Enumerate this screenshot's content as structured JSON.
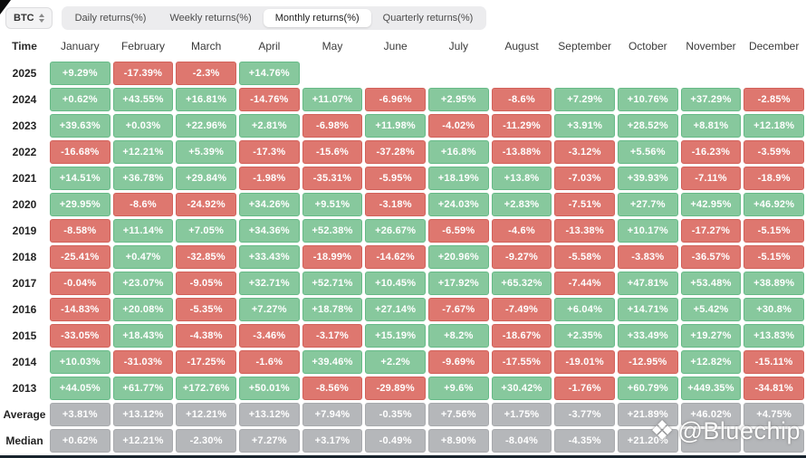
{
  "selector": {
    "label": "BTC"
  },
  "tabs": [
    {
      "label": "Daily returns(%)",
      "active": false
    },
    {
      "label": "Weekly returns(%)",
      "active": false
    },
    {
      "label": "Monthly returns(%)",
      "active": true
    },
    {
      "label": "Quarterly returns(%)",
      "active": false
    }
  ],
  "colors": {
    "positive": "#87c89d",
    "negative": "#de776f",
    "neutral": "#b5b7ba"
  },
  "table": {
    "time_header": "Time",
    "months": [
      "January",
      "February",
      "March",
      "April",
      "May",
      "June",
      "July",
      "August",
      "September",
      "October",
      "November",
      "December"
    ],
    "rows": [
      {
        "label": "2025",
        "style": "signed",
        "values": [
          "+9.29%",
          "-17.39%",
          "-2.3%",
          "+14.76%",
          "",
          "",
          "",
          "",
          "",
          "",
          "",
          ""
        ]
      },
      {
        "label": "2024",
        "style": "signed",
        "values": [
          "+0.62%",
          "+43.55%",
          "+16.81%",
          "-14.76%",
          "+11.07%",
          "-6.96%",
          "+2.95%",
          "-8.6%",
          "+7.29%",
          "+10.76%",
          "+37.29%",
          "-2.85%"
        ]
      },
      {
        "label": "2023",
        "style": "signed",
        "values": [
          "+39.63%",
          "+0.03%",
          "+22.96%",
          "+2.81%",
          "-6.98%",
          "+11.98%",
          "-4.02%",
          "-11.29%",
          "+3.91%",
          "+28.52%",
          "+8.81%",
          "+12.18%"
        ]
      },
      {
        "label": "2022",
        "style": "signed",
        "values": [
          "-16.68%",
          "+12.21%",
          "+5.39%",
          "-17.3%",
          "-15.6%",
          "-37.28%",
          "+16.8%",
          "-13.88%",
          "-3.12%",
          "+5.56%",
          "-16.23%",
          "-3.59%"
        ]
      },
      {
        "label": "2021",
        "style": "signed",
        "values": [
          "+14.51%",
          "+36.78%",
          "+29.84%",
          "-1.98%",
          "-35.31%",
          "-5.95%",
          "+18.19%",
          "+13.8%",
          "-7.03%",
          "+39.93%",
          "-7.11%",
          "-18.9%"
        ]
      },
      {
        "label": "2020",
        "style": "signed",
        "values": [
          "+29.95%",
          "-8.6%",
          "-24.92%",
          "+34.26%",
          "+9.51%",
          "-3.18%",
          "+24.03%",
          "+2.83%",
          "-7.51%",
          "+27.7%",
          "+42.95%",
          "+46.92%"
        ]
      },
      {
        "label": "2019",
        "style": "signed",
        "values": [
          "-8.58%",
          "+11.14%",
          "+7.05%",
          "+34.36%",
          "+52.38%",
          "+26.67%",
          "-6.59%",
          "-4.6%",
          "-13.38%",
          "+10.17%",
          "-17.27%",
          "-5.15%"
        ]
      },
      {
        "label": "2018",
        "style": "signed",
        "values": [
          "-25.41%",
          "+0.47%",
          "-32.85%",
          "+33.43%",
          "-18.99%",
          "-14.62%",
          "+20.96%",
          "-9.27%",
          "-5.58%",
          "-3.83%",
          "-36.57%",
          "-5.15%"
        ]
      },
      {
        "label": "2017",
        "style": "signed",
        "values": [
          "-0.04%",
          "+23.07%",
          "-9.05%",
          "+32.71%",
          "+52.71%",
          "+10.45%",
          "+17.92%",
          "+65.32%",
          "-7.44%",
          "+47.81%",
          "+53.48%",
          "+38.89%"
        ]
      },
      {
        "label": "2016",
        "style": "signed",
        "values": [
          "-14.83%",
          "+20.08%",
          "-5.35%",
          "+7.27%",
          "+18.78%",
          "+27.14%",
          "-7.67%",
          "-7.49%",
          "+6.04%",
          "+14.71%",
          "+5.42%",
          "+30.8%"
        ]
      },
      {
        "label": "2015",
        "style": "signed",
        "values": [
          "-33.05%",
          "+18.43%",
          "-4.38%",
          "-3.46%",
          "-3.17%",
          "+15.19%",
          "+8.2%",
          "-18.67%",
          "+2.35%",
          "+33.49%",
          "+19.27%",
          "+13.83%"
        ]
      },
      {
        "label": "2014",
        "style": "signed",
        "values": [
          "+10.03%",
          "-31.03%",
          "-17.25%",
          "-1.6%",
          "+39.46%",
          "+2.2%",
          "-9.69%",
          "-17.55%",
          "-19.01%",
          "-12.95%",
          "+12.82%",
          "-15.11%"
        ]
      },
      {
        "label": "2013",
        "style": "signed",
        "values": [
          "+44.05%",
          "+61.77%",
          "+172.76%",
          "+50.01%",
          "-8.56%",
          "-29.89%",
          "+9.6%",
          "+30.42%",
          "-1.76%",
          "+60.79%",
          "+449.35%",
          "-34.81%"
        ]
      },
      {
        "label": "Average",
        "style": "gray",
        "values": [
          "+3.81%",
          "+13.12%",
          "+12.21%",
          "+13.12%",
          "+7.94%",
          "-0.35%",
          "+7.56%",
          "+1.75%",
          "-3.77%",
          "+21.89%",
          "+46.02%",
          "+4.75%"
        ]
      },
      {
        "label": "Median",
        "style": "gray",
        "values": [
          "+0.62%",
          "+12.21%",
          "-2.30%",
          "+7.27%",
          "+3.17%",
          "-0.49%",
          "+8.90%",
          "-8.04%",
          "-4.35%",
          "+21.20%",
          "",
          ""
        ]
      }
    ]
  },
  "watermark": {
    "handle": "@Bluechip",
    "icon": "diamond-logo"
  }
}
